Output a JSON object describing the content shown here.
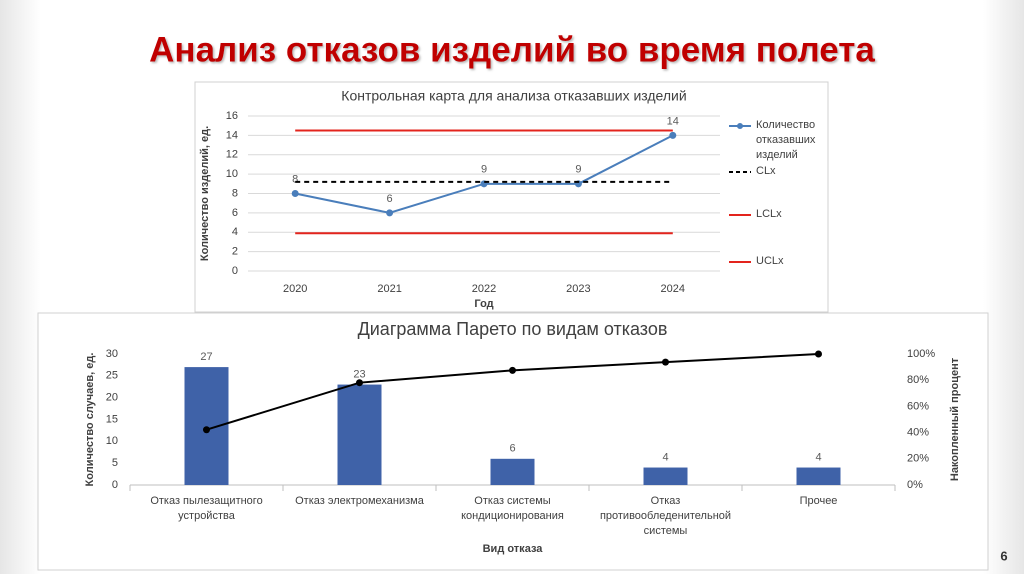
{
  "title": "Анализ отказов изделий во время полета",
  "page_number": "6",
  "chart_data": [
    {
      "type": "line",
      "title": "Контрольная карта для анализа отказавших изделий",
      "x_label": "Год",
      "y_label": "Количество изделий, ед.",
      "categories": [
        "2020",
        "2021",
        "2022",
        "2023",
        "2024"
      ],
      "ylim": [
        0,
        16
      ],
      "yticks": [
        0,
        2,
        4,
        6,
        8,
        10,
        12,
        14,
        16
      ],
      "grid": true,
      "series": [
        {
          "name": "Количество отказавших изделий",
          "color": "#4a7ebb",
          "values": [
            8,
            6,
            9,
            9,
            14
          ],
          "markers": true,
          "data_labels": true
        },
        {
          "name": "CLx",
          "color": "#000000",
          "values": [
            9.2,
            9.2,
            9.2,
            9.2,
            9.2
          ],
          "dash": true
        },
        {
          "name": "LCLx",
          "color": "#e3241d",
          "values": [
            3.9,
            3.9,
            3.9,
            3.9,
            3.9
          ]
        },
        {
          "name": "UCLx",
          "color": "#e3241d",
          "values": [
            14.5,
            14.5,
            14.5,
            14.5,
            14.5
          ]
        }
      ]
    },
    {
      "type": "bar",
      "title": "Диаграмма Парето по видам отказов",
      "x_label": "Вид отказа",
      "y_label": "Количество случаев, ед.",
      "y2_label": "Накопленный процент",
      "categories": [
        "Отказ пылезащитного устройства",
        "Отказ электромеханизма",
        "Отказ системы кондиционирования",
        "Отказ противообледенительной системы",
        "Прочее"
      ],
      "ylim": [
        0,
        30
      ],
      "yticks": [
        0,
        5,
        10,
        15,
        20,
        25,
        30
      ],
      "grid": false,
      "y2lim": [
        0,
        100
      ],
      "y2ticks": [
        {
          "value": 0,
          "label": "0%"
        },
        {
          "value": 20,
          "label": "20%"
        },
        {
          "value": 40,
          "label": "40%"
        },
        {
          "value": 60,
          "label": "60%"
        },
        {
          "value": 80,
          "label": "80%"
        },
        {
          "value": 100,
          "label": "100%"
        }
      ],
      "series": [
        {
          "type": "bar",
          "color": "#3f62a8",
          "values": [
            27,
            23,
            6,
            4,
            4
          ],
          "data_labels": true
        },
        {
          "type": "line",
          "axis": "y2",
          "color": "#000000",
          "values": [
            42.2,
            78.1,
            87.5,
            93.8,
            100
          ],
          "markers": true
        }
      ]
    }
  ]
}
